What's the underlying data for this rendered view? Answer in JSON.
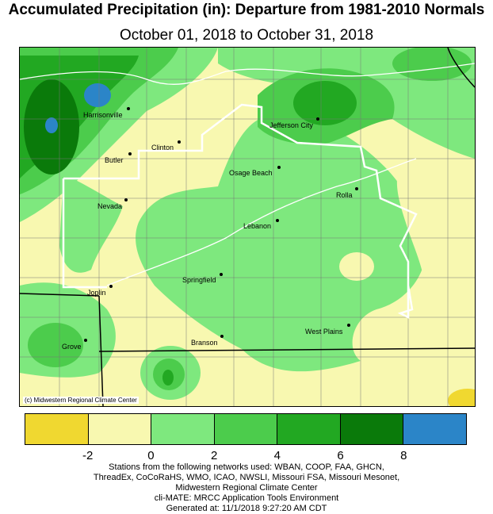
{
  "title": "Accumulated Precipitation (in): Departure from 1981-2010 Normals",
  "subtitle": "October 01, 2018 to October 31, 2018",
  "map": {
    "credit": "(c) Midwestern Regional Climate Center",
    "cities": [
      {
        "name": "Harrisonville"
      },
      {
        "name": "Jefferson City"
      },
      {
        "name": "Clinton"
      },
      {
        "name": "Butler"
      },
      {
        "name": "Osage Beach"
      },
      {
        "name": "Rolla"
      },
      {
        "name": "Nevada"
      },
      {
        "name": "Lebanon"
      },
      {
        "name": "Springfield"
      },
      {
        "name": "Joplin"
      },
      {
        "name": "West Plains"
      },
      {
        "name": "Branson"
      },
      {
        "name": "Grove"
      }
    ]
  },
  "legend": {
    "colors": [
      "#f0d830",
      "#f8f8b0",
      "#7ee87e",
      "#4ccc4c",
      "#22a822",
      "#0a7a0a",
      "#2b85c8"
    ],
    "ticks": [
      "-2",
      "0",
      "2",
      "4",
      "6",
      "8"
    ]
  },
  "footer": {
    "line1": "Stations from the following networks used: WBAN, COOP, FAA, GHCN,",
    "line2": "ThreadEx, CoCoRaHS, WMO, ICAO, NWSLI, Missouri FSA, Missouri Mesonet,",
    "line3": "Midwestern Regional Climate Center",
    "line4": "cli-MATE: MRCC Application Tools Environment",
    "line5": "Generated at: 11/1/2018 9:27:20 AM CDT"
  }
}
